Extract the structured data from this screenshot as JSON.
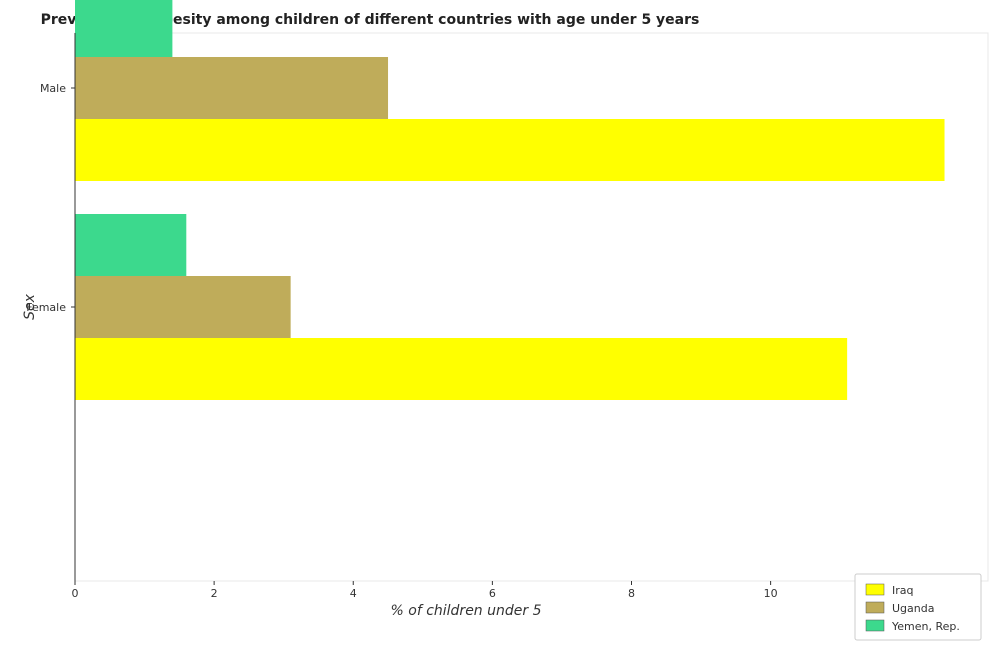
{
  "chart_data": {
    "type": "bar",
    "orientation": "horizontal",
    "title": "Prevalence of obesity among children of different countries with age under 5 years",
    "xlabel": "% of children under 5",
    "ylabel": "Sex",
    "categories": [
      "Female",
      "Male"
    ],
    "series": [
      {
        "name": "Iraq",
        "color": "#ffff00",
        "values": [
          11.1,
          12.5
        ]
      },
      {
        "name": "Uganda",
        "color": "#bfac5a",
        "values": [
          3.1,
          4.5
        ]
      },
      {
        "name": "Yemen, Rep.",
        "color": "#3cd98d",
        "values": [
          1.6,
          1.4
        ]
      }
    ],
    "xlim": [
      0,
      13.125
    ],
    "xticks": [
      0,
      2,
      4,
      6,
      8,
      10,
      12
    ],
    "xtick_labels": [
      "0",
      "2",
      "4",
      "6",
      "8",
      "10",
      "12"
    ],
    "grid": false,
    "legend_position": "bottom-right"
  }
}
